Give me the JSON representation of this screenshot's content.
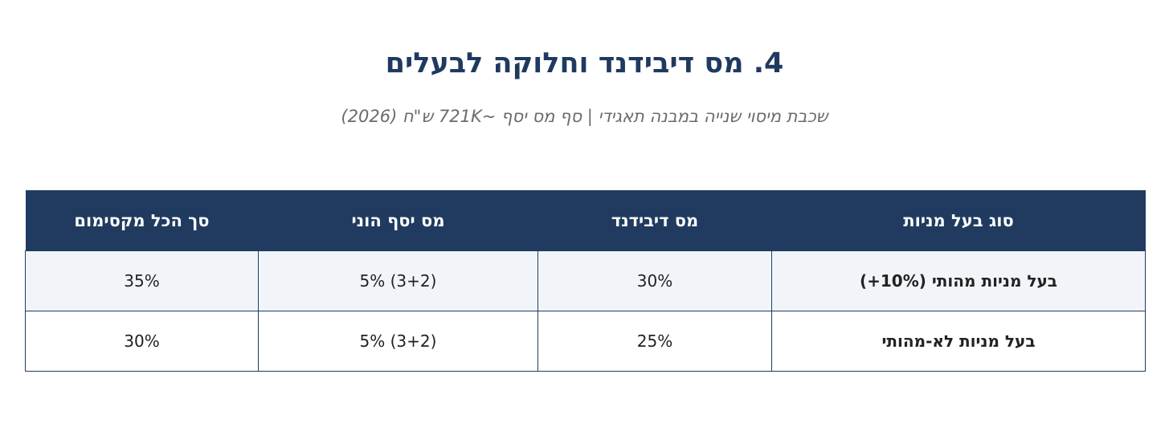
{
  "title": "4. מס דיבידנד וחלוקה לבעלים",
  "subtitle": "שכבת מיסוי שנייה במבנה תאגידי | סף מס יסף ~721K ש\"ח (2026)",
  "table": {
    "headers": [
      "סוג בעל מניות",
      "מס דיבידנד",
      "מס יסף הוני",
      "סך הכל מקסימום"
    ],
    "rows": [
      {
        "type": "בעל מניות מהותי (10%+)",
        "dividend_tax": "30%",
        "surtax": "5% (3+2)",
        "total_max": "35%"
      },
      {
        "type": "בעל מניות לא-מהותי",
        "dividend_tax": "25%",
        "surtax": "5% (3+2)",
        "total_max": "30%"
      }
    ]
  }
}
